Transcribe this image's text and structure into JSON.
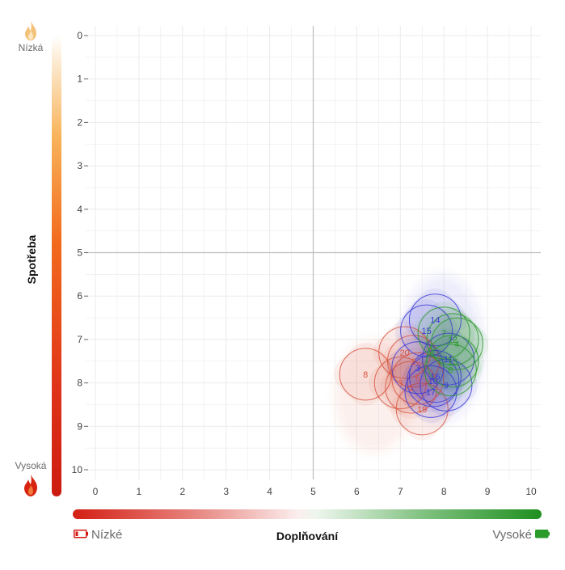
{
  "chart_data": {
    "type": "scatter",
    "xlabel": "Doplňování",
    "ylabel": "Spotřeba",
    "xlim": [
      0,
      10
    ],
    "ylim": [
      10,
      0
    ],
    "y_reversed": true,
    "xticks": [
      "0",
      "1",
      "2",
      "3",
      "4",
      "5",
      "6",
      "7",
      "8",
      "9",
      "10"
    ],
    "yticks": [
      "0",
      "1",
      "2",
      "3",
      "4",
      "5",
      "6",
      "7",
      "8",
      "9",
      "10"
    ],
    "reference_lines": {
      "x": 5,
      "y": 5
    },
    "grid": true,
    "y_scale_labels": {
      "top": "Nízká",
      "bottom": "Vysoká"
    },
    "x_scale_labels": {
      "left": "Nízké",
      "right": "Vysoké"
    },
    "colors": {
      "red": "#d9533f",
      "blue": "#3a3ad6",
      "green": "#2e9a2e",
      "grid": "#ebebeb",
      "refline": "#bdbdbd",
      "battery_low": "#d31b12",
      "battery_high": "#2a9a2a",
      "flame_low": "#f3c27a",
      "flame_high": "#d8230f"
    },
    "points": [
      {
        "label": "8",
        "x": 6.2,
        "y": 7.8,
        "color": "red"
      },
      {
        "label": "20",
        "x": 7.1,
        "y": 7.3,
        "color": "red"
      },
      {
        "label": "3",
        "x": 7.0,
        "y": 8.0,
        "color": "red"
      },
      {
        "label": "19",
        "x": 7.5,
        "y": 8.6,
        "color": "red"
      },
      {
        "label": "2",
        "x": 7.3,
        "y": 7.5,
        "color": "red"
      },
      {
        "label": "1",
        "x": 7.25,
        "y": 8.1,
        "color": "red"
      },
      {
        "label": "5",
        "x": 7.4,
        "y": 7.9,
        "color": "red"
      },
      {
        "label": "3",
        "x": 7.4,
        "y": 7.65,
        "color": "blue"
      },
      {
        "label": "15",
        "x": 7.6,
        "y": 6.8,
        "color": "blue"
      },
      {
        "label": "14",
        "x": 7.8,
        "y": 6.55,
        "color": "blue"
      },
      {
        "label": "16",
        "x": 7.8,
        "y": 7.85,
        "color": "blue"
      },
      {
        "label": "10",
        "x": 7.75,
        "y": 7.95,
        "color": "blue"
      },
      {
        "label": "17",
        "x": 7.7,
        "y": 8.2,
        "color": "blue"
      },
      {
        "label": "9",
        "x": 8.05,
        "y": 8.05,
        "color": "blue"
      },
      {
        "label": "11",
        "x": 8.1,
        "y": 7.45,
        "color": "blue"
      },
      {
        "label": "7",
        "x": 8.0,
        "y": 6.85,
        "color": "green"
      },
      {
        "label": "4",
        "x": 8.3,
        "y": 7.1,
        "color": "green"
      },
      {
        "label": "12",
        "x": 8.2,
        "y": 7.0,
        "color": "green"
      },
      {
        "label": "13",
        "x": 8.2,
        "y": 7.5,
        "color": "green"
      },
      {
        "label": "6",
        "x": 8.15,
        "y": 7.7,
        "color": "green"
      }
    ],
    "uncertainty_regions": [
      {
        "color": "red",
        "x": [
          5.5,
          7.3
        ],
        "y": [
          7.0,
          9.6
        ]
      },
      {
        "color": "blue",
        "x": [
          7.0,
          8.9
        ],
        "y": [
          5.5,
          8.9
        ]
      },
      {
        "color": "green",
        "x": [
          7.5,
          8.8
        ],
        "y": [
          6.3,
          8.2
        ]
      }
    ]
  }
}
